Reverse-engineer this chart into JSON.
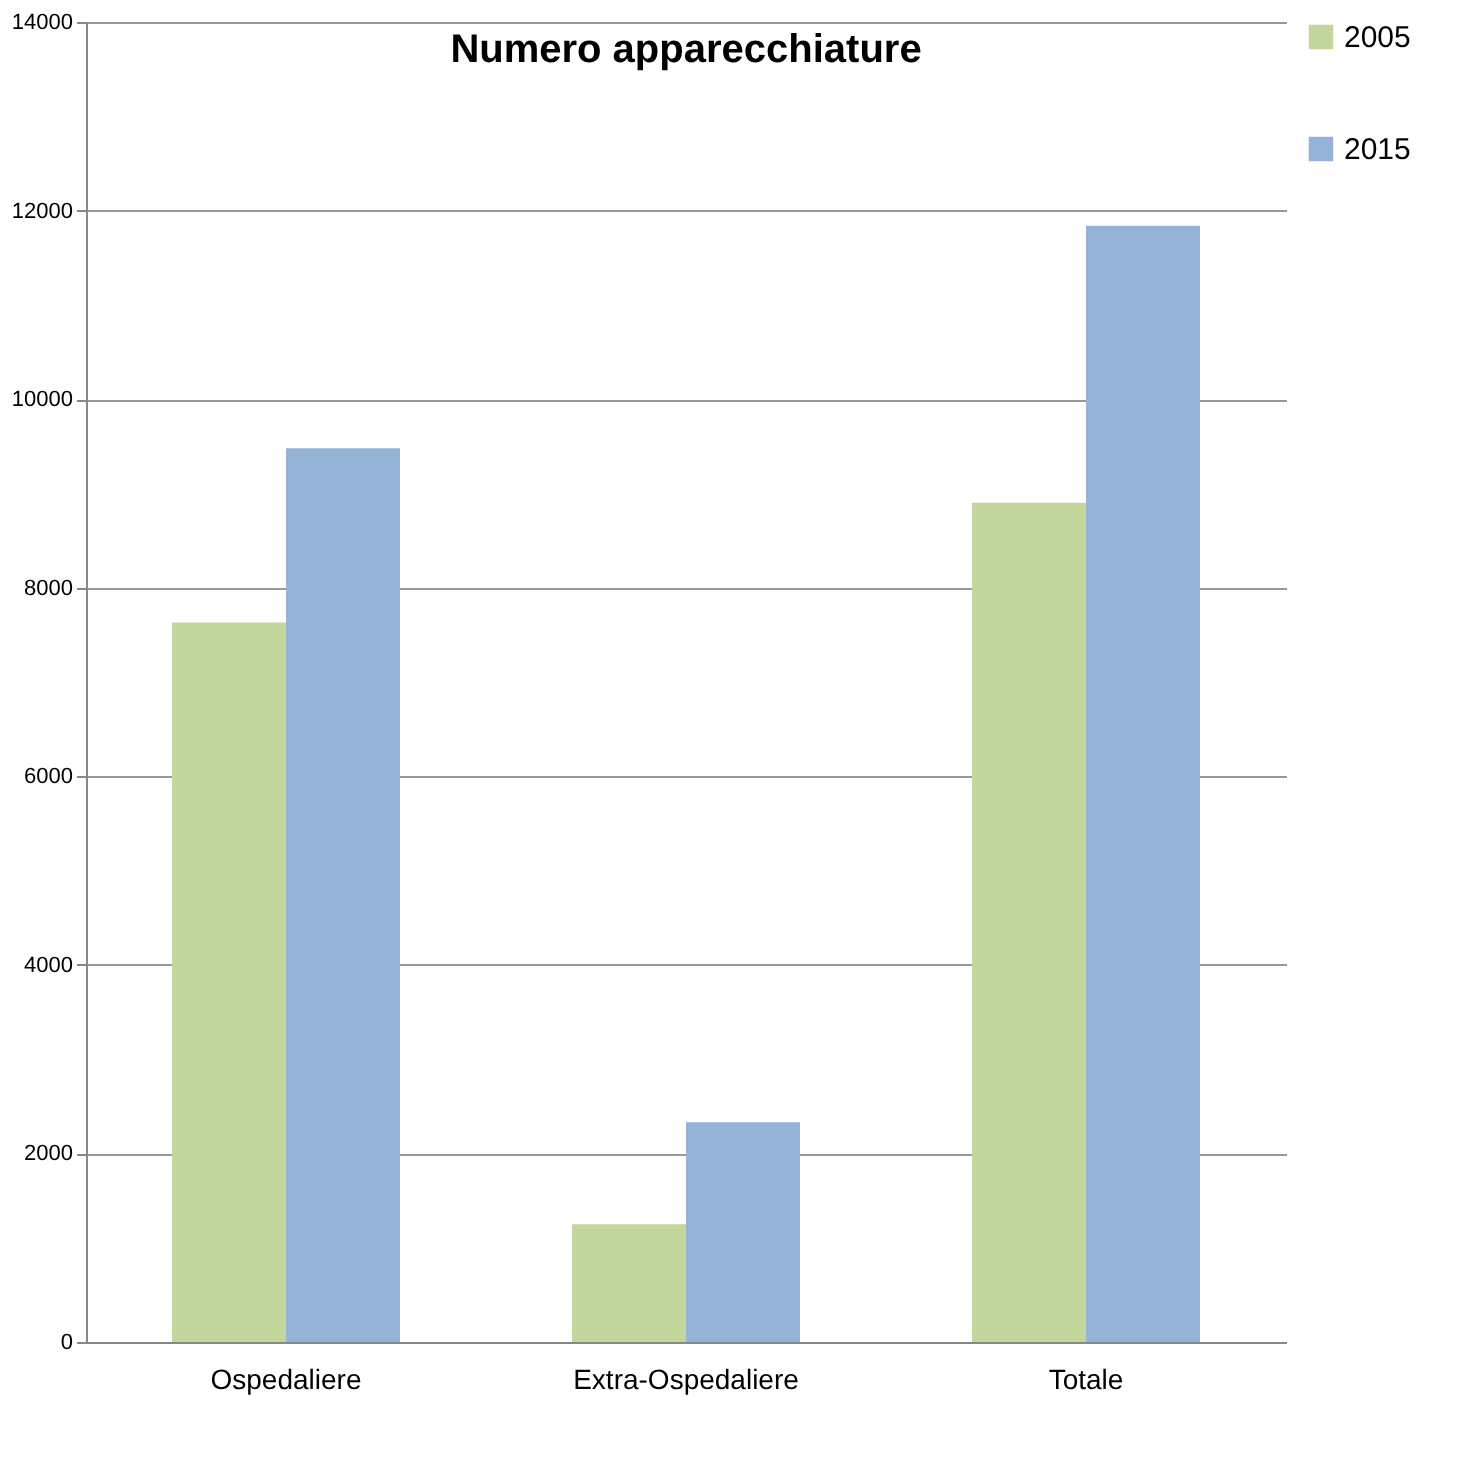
{
  "chart_data": {
    "type": "bar",
    "title": "Numero apparecchiature",
    "categories": [
      "Ospedaliere",
      "Extra-Ospedaliere",
      "Totale"
    ],
    "series": [
      {
        "name": "2005",
        "color": "#c3d69b",
        "values": [
          7630,
          1250,
          8900
        ]
      },
      {
        "name": "2015",
        "color": "#95b3d7",
        "values": [
          9480,
          2330,
          11840
        ]
      }
    ],
    "ylim": [
      0,
      14000
    ],
    "yticks": [
      0,
      2000,
      4000,
      6000,
      8000,
      10000,
      12000,
      14000
    ],
    "grid": "y",
    "legend": "right"
  }
}
